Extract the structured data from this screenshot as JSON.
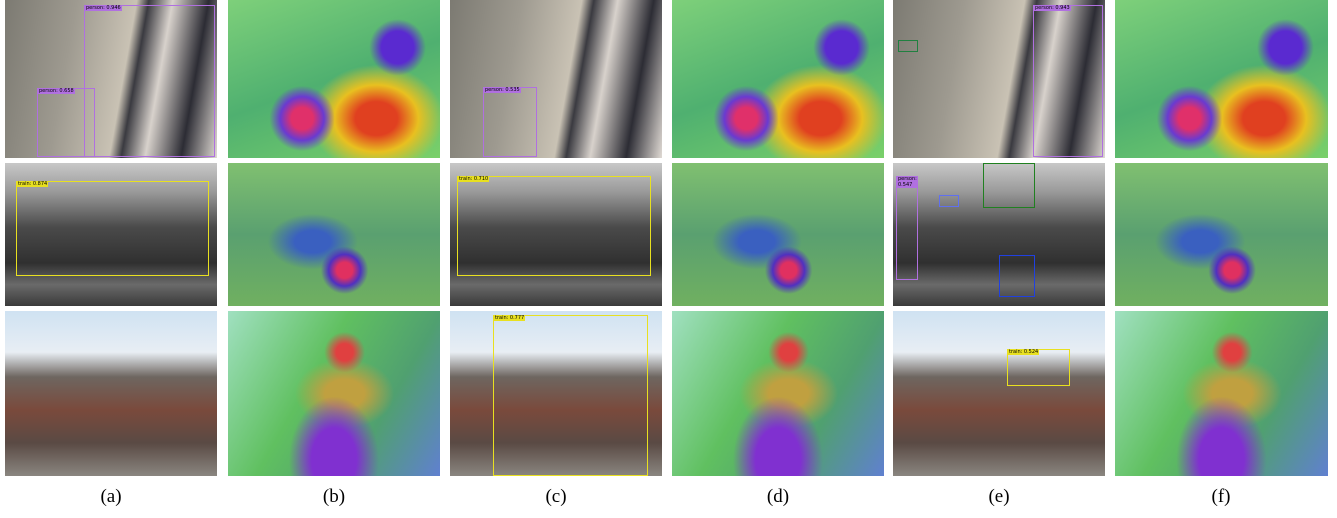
{
  "rows": [
    [
      [
        "person: 0.946",
        "person: 0.658"
      ],
      [],
      [
        "person: 0.535"
      ],
      [],
      [
        "person: 0.943"
      ],
      []
    ],
    [
      [
        "train: 0.874"
      ],
      [],
      [
        "train: 0.710"
      ],
      [],
      [
        "person: 0.547"
      ],
      []
    ],
    [
      [],
      [],
      [
        "train: 0.777"
      ],
      [],
      [
        "train: 0.524"
      ],
      []
    ]
  ],
  "captions": [
    "(a)",
    "(b)",
    "(c)",
    "(d)",
    "(e)",
    "(f)"
  ]
}
